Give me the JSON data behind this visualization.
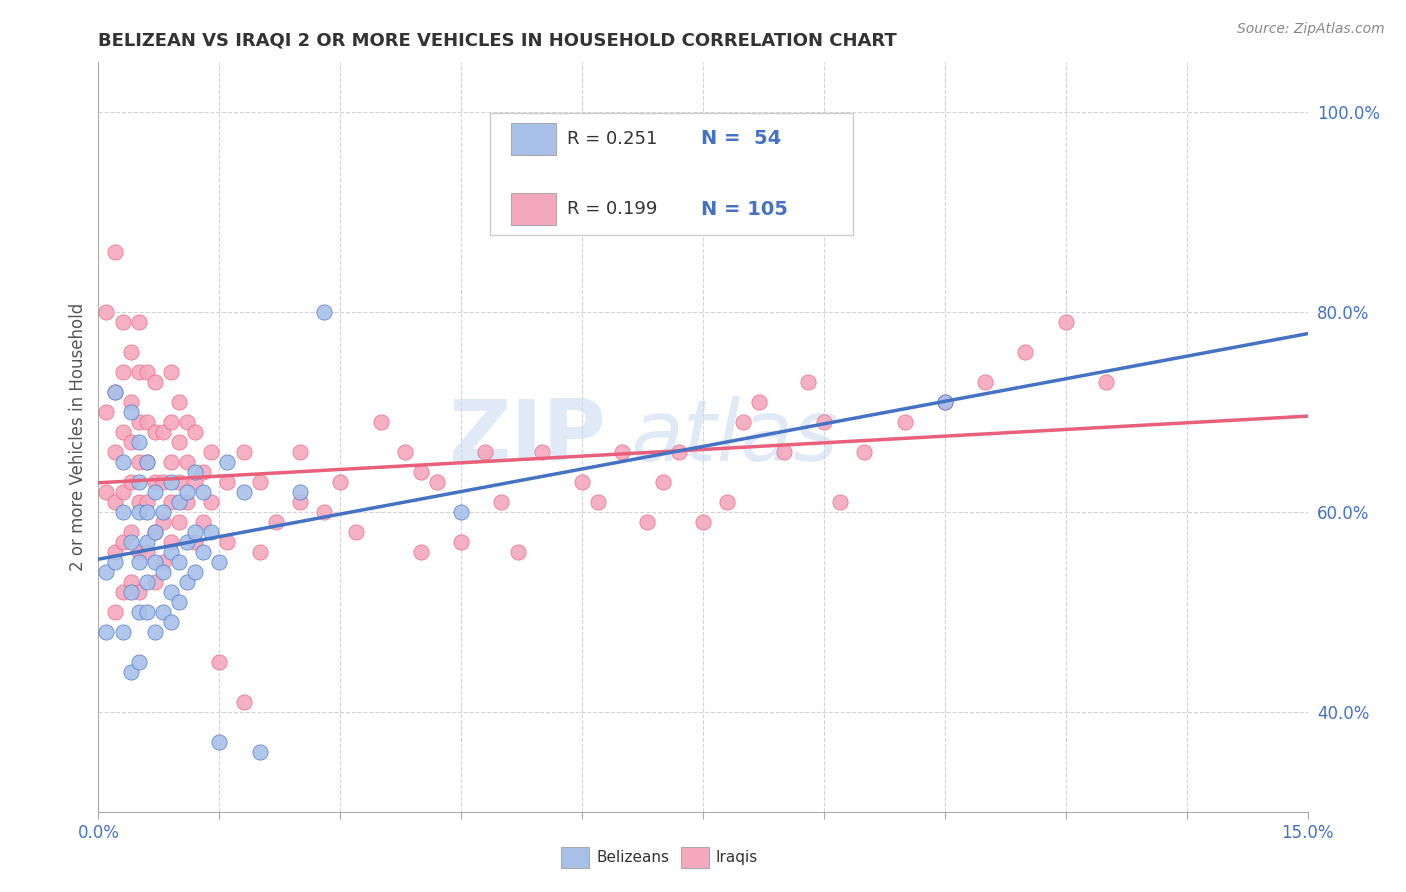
{
  "title": "BELIZEAN VS IRAQI 2 OR MORE VEHICLES IN HOUSEHOLD CORRELATION CHART",
  "source": "Source: ZipAtlas.com",
  "ylabel_label": "2 or more Vehicles in Household",
  "xlim": [
    0.0,
    0.15
  ],
  "ylim": [
    0.3,
    1.05
  ],
  "xticks": [
    0.0,
    0.015,
    0.03,
    0.045,
    0.06,
    0.075,
    0.09,
    0.105,
    0.12,
    0.135,
    0.15
  ],
  "xtick_labels": [
    "0.0%",
    "",
    "",
    "",
    "",
    "",
    "",
    "",
    "",
    "",
    "15.0%"
  ],
  "ytick_labels": [
    "40.0%",
    "60.0%",
    "80.0%",
    "100.0%"
  ],
  "yticks": [
    0.4,
    0.6,
    0.8,
    1.0
  ],
  "legend_r_blue": "R = 0.251",
  "legend_n_blue": "N =  54",
  "legend_r_pink": "R = 0.199",
  "legend_n_pink": "N = 105",
  "blue_color": "#A8C0E8",
  "pink_color": "#F4A8BE",
  "blue_line_color": "#4472C4",
  "pink_line_color": "#E8607A",
  "watermark_zip": "ZIP",
  "watermark_atlas": "atlas",
  "belizean_x": [
    0.001,
    0.001,
    0.002,
    0.002,
    0.003,
    0.003,
    0.003,
    0.004,
    0.004,
    0.004,
    0.004,
    0.005,
    0.005,
    0.005,
    0.005,
    0.005,
    0.005,
    0.006,
    0.006,
    0.006,
    0.006,
    0.006,
    0.007,
    0.007,
    0.007,
    0.007,
    0.008,
    0.008,
    0.008,
    0.009,
    0.009,
    0.009,
    0.009,
    0.01,
    0.01,
    0.01,
    0.011,
    0.011,
    0.011,
    0.012,
    0.012,
    0.012,
    0.013,
    0.013,
    0.014,
    0.015,
    0.015,
    0.016,
    0.018,
    0.02,
    0.025,
    0.028,
    0.045,
    0.105
  ],
  "belizean_y": [
    0.54,
    0.48,
    0.55,
    0.72,
    0.48,
    0.6,
    0.65,
    0.44,
    0.52,
    0.57,
    0.7,
    0.45,
    0.5,
    0.55,
    0.6,
    0.63,
    0.67,
    0.5,
    0.53,
    0.57,
    0.6,
    0.65,
    0.48,
    0.55,
    0.58,
    0.62,
    0.5,
    0.54,
    0.6,
    0.49,
    0.52,
    0.56,
    0.63,
    0.51,
    0.55,
    0.61,
    0.53,
    0.57,
    0.62,
    0.54,
    0.58,
    0.64,
    0.56,
    0.62,
    0.58,
    0.37,
    0.55,
    0.65,
    0.62,
    0.36,
    0.62,
    0.8,
    0.6,
    0.71
  ],
  "iraqi_x": [
    0.001,
    0.001,
    0.001,
    0.002,
    0.002,
    0.002,
    0.002,
    0.002,
    0.002,
    0.003,
    0.003,
    0.003,
    0.003,
    0.003,
    0.003,
    0.004,
    0.004,
    0.004,
    0.004,
    0.004,
    0.004,
    0.005,
    0.005,
    0.005,
    0.005,
    0.005,
    0.005,
    0.005,
    0.006,
    0.006,
    0.006,
    0.006,
    0.006,
    0.007,
    0.007,
    0.007,
    0.007,
    0.007,
    0.008,
    0.008,
    0.008,
    0.008,
    0.009,
    0.009,
    0.009,
    0.009,
    0.009,
    0.01,
    0.01,
    0.01,
    0.01,
    0.011,
    0.011,
    0.011,
    0.012,
    0.012,
    0.012,
    0.013,
    0.013,
    0.014,
    0.014,
    0.015,
    0.016,
    0.016,
    0.018,
    0.018,
    0.02,
    0.02,
    0.022,
    0.025,
    0.025,
    0.028,
    0.03,
    0.032,
    0.035,
    0.038,
    0.04,
    0.04,
    0.042,
    0.045,
    0.048,
    0.05,
    0.052,
    0.055,
    0.06,
    0.062,
    0.065,
    0.068,
    0.07,
    0.072,
    0.075,
    0.078,
    0.08,
    0.082,
    0.085,
    0.088,
    0.09,
    0.092,
    0.095,
    0.1,
    0.105,
    0.11,
    0.115,
    0.12,
    0.125
  ],
  "iraqi_y": [
    0.62,
    0.7,
    0.8,
    0.5,
    0.56,
    0.61,
    0.66,
    0.72,
    0.86,
    0.52,
    0.57,
    0.62,
    0.68,
    0.74,
    0.79,
    0.53,
    0.58,
    0.63,
    0.67,
    0.71,
    0.76,
    0.52,
    0.56,
    0.61,
    0.65,
    0.69,
    0.74,
    0.79,
    0.56,
    0.61,
    0.65,
    0.69,
    0.74,
    0.53,
    0.58,
    0.63,
    0.68,
    0.73,
    0.55,
    0.59,
    0.63,
    0.68,
    0.57,
    0.61,
    0.65,
    0.69,
    0.74,
    0.59,
    0.63,
    0.67,
    0.71,
    0.61,
    0.65,
    0.69,
    0.57,
    0.63,
    0.68,
    0.59,
    0.64,
    0.61,
    0.66,
    0.45,
    0.57,
    0.63,
    0.41,
    0.66,
    0.56,
    0.63,
    0.59,
    0.61,
    0.66,
    0.6,
    0.63,
    0.58,
    0.69,
    0.66,
    0.64,
    0.56,
    0.63,
    0.57,
    0.66,
    0.61,
    0.56,
    0.66,
    0.63,
    0.61,
    0.66,
    0.59,
    0.63,
    0.66,
    0.59,
    0.61,
    0.69,
    0.71,
    0.66,
    0.73,
    0.69,
    0.61,
    0.66,
    0.69,
    0.71,
    0.73,
    0.76,
    0.79,
    0.73
  ]
}
